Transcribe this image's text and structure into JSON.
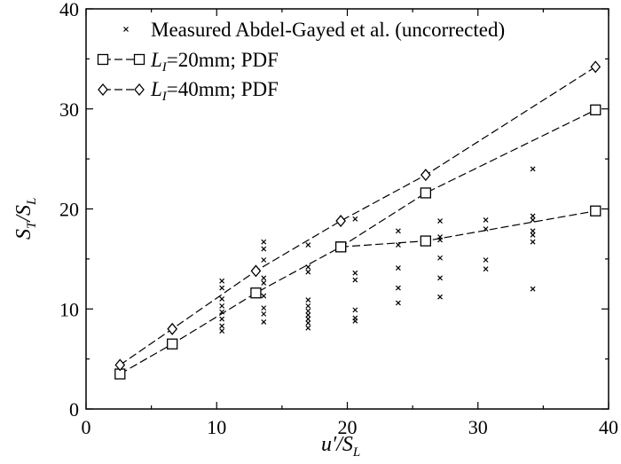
{
  "chart_data": {
    "type": "scatter",
    "title": "",
    "xlim": [
      0,
      40
    ],
    "ylim": [
      0,
      40
    ],
    "xticks": [
      0,
      10,
      20,
      30,
      40
    ],
    "yticks": [
      0,
      10,
      20,
      30,
      40
    ],
    "xlabel": {
      "main": "u′/S",
      "sub": "L"
    },
    "ylabel": {
      "main1": "S",
      "sub1": "T",
      "main2": "/S",
      "sub2": "L"
    },
    "grid": false,
    "legend_position": "top-left",
    "series": [
      {
        "name": "Measured Abdel-Gayed et al. (uncorrected)",
        "marker": "x",
        "line": false,
        "points": [
          [
            10.4,
            12.8
          ],
          [
            10.4,
            12.1
          ],
          [
            10.4,
            11.0
          ],
          [
            10.4,
            10.3
          ],
          [
            10.4,
            9.7
          ],
          [
            10.4,
            9.0
          ],
          [
            10.4,
            8.3
          ],
          [
            10.4,
            7.8
          ],
          [
            13.6,
            16.7
          ],
          [
            13.6,
            16.0
          ],
          [
            13.6,
            14.9
          ],
          [
            13.6,
            13.1
          ],
          [
            13.6,
            12.6
          ],
          [
            13.6,
            11.3
          ],
          [
            13.6,
            10.1
          ],
          [
            13.6,
            9.5
          ],
          [
            13.6,
            8.7
          ],
          [
            17.0,
            16.4
          ],
          [
            17.0,
            14.2
          ],
          [
            17.0,
            13.7
          ],
          [
            17.0,
            10.9
          ],
          [
            17.0,
            10.3
          ],
          [
            17.0,
            9.8
          ],
          [
            17.0,
            9.4
          ],
          [
            17.0,
            9.0
          ],
          [
            17.0,
            8.6
          ],
          [
            17.0,
            8.1
          ],
          [
            20.6,
            19.0
          ],
          [
            20.6,
            13.6
          ],
          [
            20.6,
            12.9
          ],
          [
            20.6,
            9.9
          ],
          [
            20.6,
            9.1
          ],
          [
            20.6,
            8.8
          ],
          [
            23.9,
            17.8
          ],
          [
            23.9,
            16.4
          ],
          [
            23.9,
            14.1
          ],
          [
            23.9,
            12.1
          ],
          [
            23.9,
            10.6
          ],
          [
            27.1,
            18.8
          ],
          [
            27.1,
            17.2
          ],
          [
            27.1,
            16.9
          ],
          [
            27.1,
            15.1
          ],
          [
            27.1,
            13.1
          ],
          [
            27.1,
            11.2
          ],
          [
            30.6,
            18.9
          ],
          [
            30.6,
            18.0
          ],
          [
            30.6,
            14.9
          ],
          [
            30.6,
            14.0
          ],
          [
            34.2,
            24.0
          ],
          [
            34.2,
            19.3
          ],
          [
            34.2,
            18.9
          ],
          [
            34.2,
            17.8
          ],
          [
            34.2,
            17.4
          ],
          [
            34.2,
            16.7
          ],
          [
            34.2,
            12.0
          ]
        ]
      },
      {
        "name_main": "L",
        "name_sub": "I",
        "name_rest": "=20mm; PDF",
        "marker": "square",
        "line": true,
        "points": [
          [
            2.6,
            3.5
          ],
          [
            6.6,
            6.5
          ],
          [
            13.0,
            11.6
          ],
          [
            19.5,
            16.2
          ],
          [
            26.0,
            21.6
          ],
          [
            39.0,
            29.9
          ]
        ]
      },
      {
        "name": "",
        "marker": "square",
        "line": true,
        "points": [
          [
            19.5,
            16.2
          ],
          [
            26.0,
            16.8
          ],
          [
            39.0,
            19.8
          ]
        ]
      },
      {
        "name_main": "L",
        "name_sub": "I",
        "name_rest": "=40mm; PDF",
        "marker": "diamond",
        "line": true,
        "points": [
          [
            2.6,
            4.4
          ],
          [
            6.6,
            8.0
          ],
          [
            13.0,
            13.8
          ],
          [
            19.5,
            18.8
          ],
          [
            26.0,
            23.4
          ],
          [
            39.0,
            34.2
          ]
        ]
      }
    ]
  }
}
